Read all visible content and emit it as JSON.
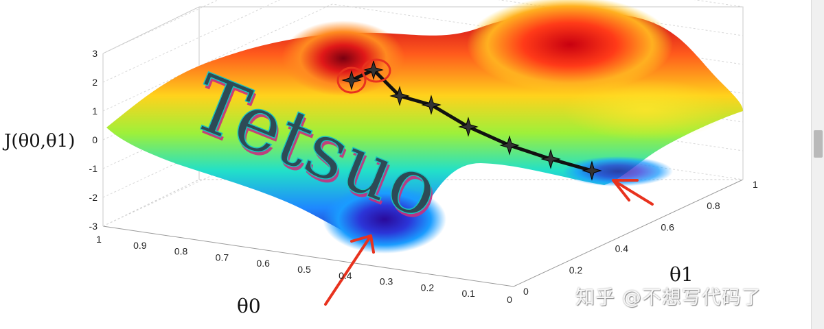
{
  "chart_data": {
    "type": "surface",
    "ylabel_z": "J(θ0,θ1)",
    "xlabel": "θ0",
    "ylabel": "θ1",
    "z_ticks": [
      "3",
      "2",
      "1",
      "0",
      "-1",
      "-2",
      "-3"
    ],
    "zlim": [
      -3,
      3
    ],
    "x_ticks": [
      "1",
      "0.9",
      "0.8",
      "0.7",
      "0.6",
      "0.5",
      "0.4",
      "0.3",
      "0.2",
      "0.1",
      "0"
    ],
    "xlim": [
      0,
      1
    ],
    "y_ticks": [
      "0",
      "0.2",
      "0.4",
      "0.6",
      "0.8",
      "1"
    ],
    "ylim": [
      0,
      1
    ],
    "grid": true,
    "colormap": "jet",
    "descent_path": {
      "points": [
        {
          "theta0": 0.62,
          "theta1": 0.05,
          "J": 2.1
        },
        {
          "theta0": 0.6,
          "theta1": 0.12,
          "J": 2.3
        },
        {
          "theta0": 0.58,
          "theta1": 0.2,
          "J": 1.5
        },
        {
          "theta0": 0.55,
          "theta1": 0.28,
          "J": 1.2
        },
        {
          "theta0": 0.5,
          "theta1": 0.38,
          "J": 0.5
        },
        {
          "theta0": 0.45,
          "theta1": 0.48,
          "J": -0.2
        },
        {
          "theta0": 0.4,
          "theta1": 0.58,
          "J": -0.6
        },
        {
          "theta0": 0.35,
          "theta1": 0.68,
          "J": -1.1
        }
      ],
      "color": "#111111"
    },
    "watermark_text": "Tetsuo"
  },
  "overlay": {
    "watermark": "知乎 @不想写代码了"
  },
  "colors": {
    "annotation": "#e8321e",
    "path": "#111111",
    "wordmark": "#2d4a56",
    "wordmark_shadow": "#c7307e"
  }
}
